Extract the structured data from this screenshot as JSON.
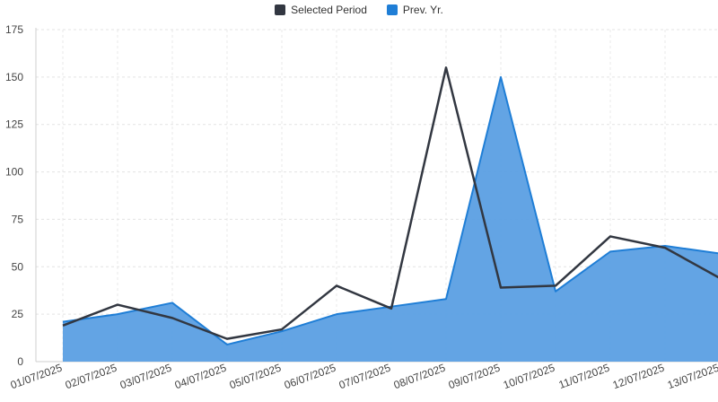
{
  "chart_data": {
    "type": "area",
    "categories": [
      "01/07/2025",
      "02/07/2025",
      "03/07/2025",
      "04/07/2025",
      "05/07/2025",
      "06/07/2025",
      "07/07/2025",
      "08/07/2025",
      "09/07/2025",
      "10/07/2025",
      "11/07/2025",
      "12/07/2025",
      "13/07/2025"
    ],
    "series": [
      {
        "name": "Selected Period",
        "color": "#323741",
        "style": "line",
        "values": [
          19,
          30,
          23,
          12,
          17,
          40,
          28,
          155,
          39,
          40,
          66,
          60,
          44
        ]
      },
      {
        "name": "Prev. Yr.",
        "color": "#1f7ed6",
        "fill": "#5b9fe3",
        "style": "area",
        "values": [
          21,
          25,
          31,
          9,
          16,
          25,
          29,
          33,
          150,
          37,
          58,
          61,
          57
        ]
      }
    ],
    "ylim": [
      0,
      175
    ],
    "yticks": [
      0,
      25,
      50,
      75,
      100,
      125,
      150,
      175
    ],
    "grid": true,
    "legend": "top-center"
  }
}
